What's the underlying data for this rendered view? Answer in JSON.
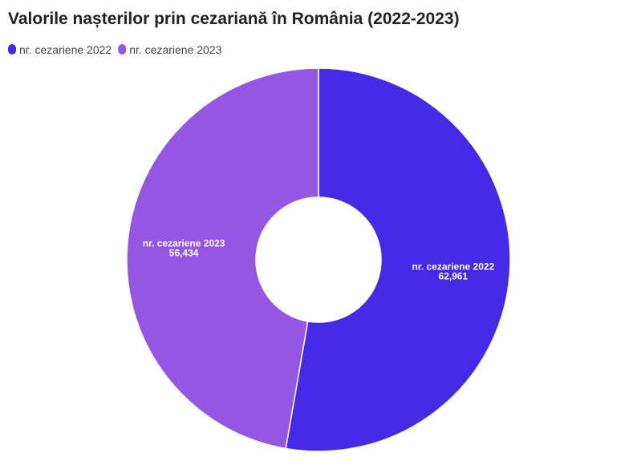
{
  "chart_data": {
    "type": "pie",
    "title": "Valorile nașterilor prin cezariană în România (2022-2023)",
    "categories": [
      "nr. cezariene 2022",
      "nr. cezariene 2023"
    ],
    "values": [
      62961,
      56434
    ],
    "value_labels": [
      "62,961",
      "56,434"
    ],
    "colors": [
      "#4429e6",
      "#9556e3"
    ],
    "donut": true
  }
}
